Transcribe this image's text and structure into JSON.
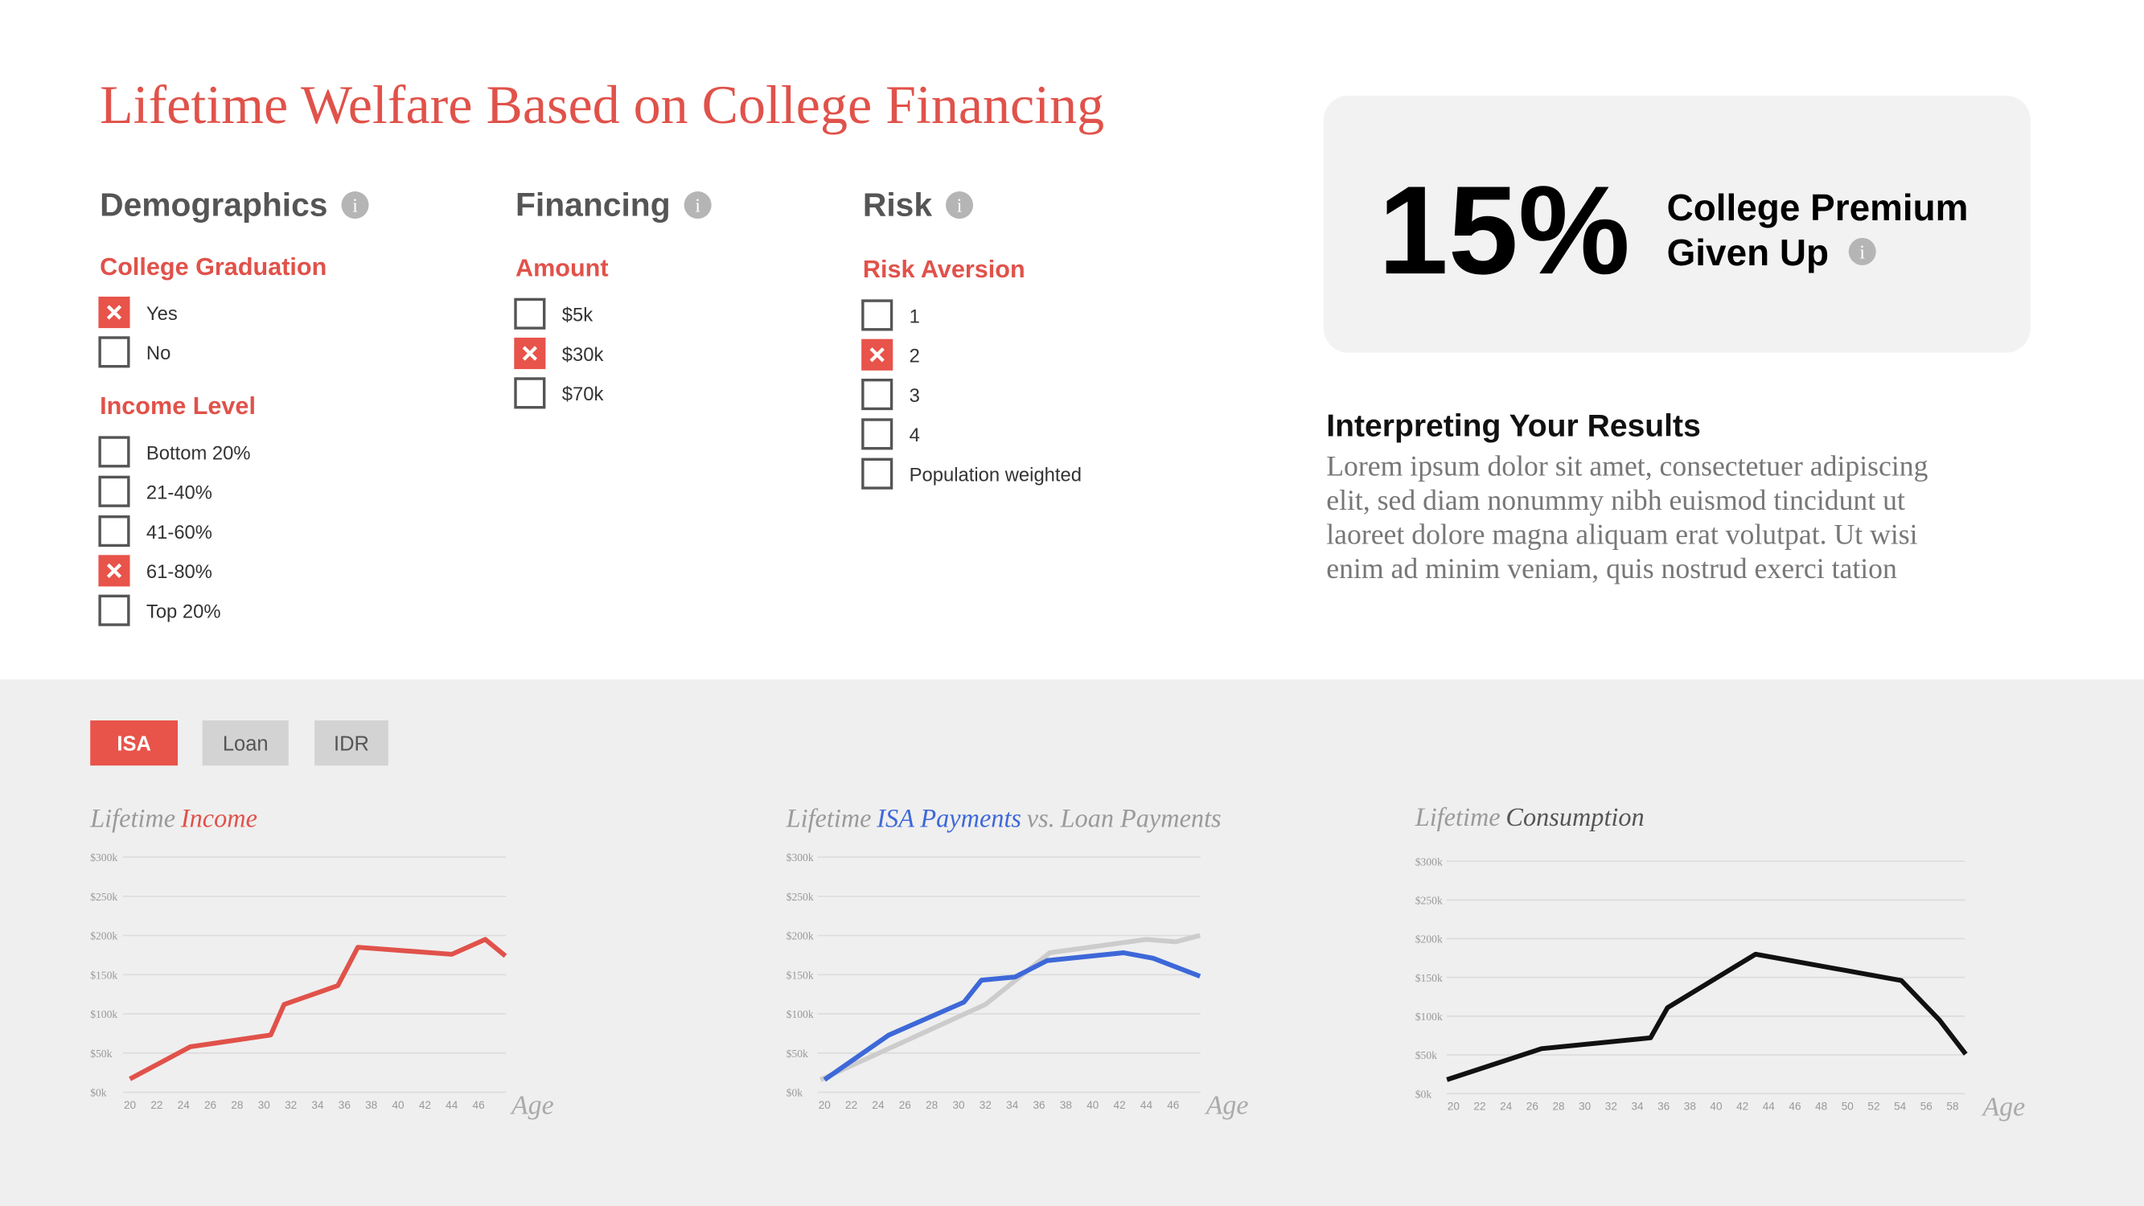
{
  "title": "Lifetime Welfare Based on College Financing",
  "sections": [
    {
      "heading": "Demographics",
      "groups": [
        {
          "label": "College Graduation",
          "options": [
            {
              "label": "Yes",
              "checked": true
            },
            {
              "label": "No",
              "checked": false
            }
          ]
        },
        {
          "label": "Income Level",
          "options": [
            {
              "label": "Bottom 20%",
              "checked": false
            },
            {
              "label": "21-40%",
              "checked": false
            },
            {
              "label": "41-60%",
              "checked": false
            },
            {
              "label": "61-80%",
              "checked": true
            },
            {
              "label": "Top 20%",
              "checked": false
            }
          ]
        }
      ]
    },
    {
      "heading": "Financing",
      "groups": [
        {
          "label": "Amount",
          "options": [
            {
              "label": "$5k",
              "checked": false
            },
            {
              "label": "$30k",
              "checked": true
            },
            {
              "label": "$70k",
              "checked": false
            }
          ]
        }
      ]
    },
    {
      "heading": "Risk",
      "groups": [
        {
          "label": "Risk Aversion",
          "options": [
            {
              "label": "1",
              "checked": false
            },
            {
              "label": "2",
              "checked": true
            },
            {
              "label": "3",
              "checked": false
            },
            {
              "label": "4",
              "checked": false
            },
            {
              "label": "Population weighted",
              "checked": false
            }
          ]
        }
      ]
    }
  ],
  "result": {
    "value": "15%",
    "label_lines": [
      "College Premium",
      "Given Up"
    ]
  },
  "interpretation": {
    "heading": "Interpreting Your Results",
    "body_lines": [
      "Lorem ipsum dolor sit amet, consectetuer adipiscing",
      "elit, sed diam nonummy nibh euismod tincidunt ut",
      "laoreet dolore magna aliquam erat volutpat. Ut wisi",
      "enim ad minim veniam, quis nostrud exerci tation"
    ]
  },
  "tabs": [
    {
      "label": "ISA",
      "active": true
    },
    {
      "label": "Loan",
      "active": false
    },
    {
      "label": "IDR",
      "active": false
    }
  ],
  "chart_data": [
    {
      "type": "line",
      "title_parts": [
        {
          "text": "Lifetime",
          "color": "#9a9a9a"
        },
        {
          "text": "Income",
          "color": "#e0524a"
        }
      ],
      "x_label": "Age",
      "xlim": [
        19.5,
        48
      ],
      "xticks": [
        20,
        22,
        24,
        26,
        28,
        30,
        32,
        34,
        36,
        38,
        40,
        42,
        44,
        46
      ],
      "ylim": [
        0,
        300
      ],
      "yticks": [
        {
          "value": 0,
          "label": "$0k"
        },
        {
          "value": 50,
          "label": "$50k"
        },
        {
          "value": 100,
          "label": "$100k"
        },
        {
          "value": 150,
          "label": "$150k"
        },
        {
          "value": 200,
          "label": "$200k"
        },
        {
          "value": 250,
          "label": "$250k"
        },
        {
          "value": 300,
          "label": "$300k"
        }
      ],
      "grid": true,
      "series": [
        {
          "color": "#e0524a",
          "x": [
            20,
            24.5,
            30.5,
            31.5,
            35.5,
            37,
            44,
            46.5,
            48
          ],
          "values": [
            17,
            58,
            73,
            112,
            136,
            185,
            176,
            195,
            174
          ]
        }
      ]
    },
    {
      "type": "line",
      "title_parts": [
        {
          "text": "Lifetime",
          "color": "#9a9a9a"
        },
        {
          "text": "ISA Payments",
          "color": "#3d68d8"
        },
        {
          "text": "vs.",
          "color": "#9a9a9a"
        },
        {
          "text": "Loan Payments",
          "color": "#9a9a9a"
        }
      ],
      "x_label": "Age",
      "xlim": [
        19.5,
        48
      ],
      "xticks": [
        20,
        22,
        24,
        26,
        28,
        30,
        32,
        34,
        36,
        38,
        40,
        42,
        44,
        46
      ],
      "ylim": [
        0,
        300
      ],
      "yticks": [
        {
          "value": 0,
          "label": "$0k"
        },
        {
          "value": 50,
          "label": "$50k"
        },
        {
          "value": 100,
          "label": "$100k"
        },
        {
          "value": 150,
          "label": "$150k"
        },
        {
          "value": 200,
          "label": "$200k"
        },
        {
          "value": 250,
          "label": "$250k"
        },
        {
          "value": 300,
          "label": "$300k"
        }
      ],
      "grid": true,
      "series": [
        {
          "color": "#cccccc",
          "x": [
            19.7,
            32,
            36.8,
            44,
            46.2,
            48
          ],
          "values": [
            16,
            112,
            178,
            195,
            192,
            200
          ]
        },
        {
          "color": "#3d68d8",
          "x": [
            20,
            24.8,
            30.4,
            31.7,
            34.2,
            36.6,
            42.3,
            44.5,
            48
          ],
          "values": [
            16,
            73,
            115,
            143,
            147,
            168,
            178,
            171,
            148
          ]
        }
      ]
    },
    {
      "type": "line",
      "title_parts": [
        {
          "text": "Lifetime",
          "color": "#9a9a9a"
        },
        {
          "text": "Consumption",
          "color": "#555555"
        }
      ],
      "x_label": "Age",
      "xlim": [
        19,
        60
      ],
      "xticks": [
        20,
        22,
        24,
        26,
        28,
        30,
        32,
        34,
        36,
        38,
        40,
        42,
        44,
        46,
        48,
        50,
        52,
        54,
        56,
        58
      ],
      "ylim": [
        0,
        300
      ],
      "yticks": [
        {
          "value": 0,
          "label": "$0k"
        },
        {
          "value": 50,
          "label": "$50k"
        },
        {
          "value": 100,
          "label": "$100k"
        },
        {
          "value": 150,
          "label": "$150k"
        },
        {
          "value": 200,
          "label": "$200k"
        },
        {
          "value": 250,
          "label": "$250k"
        },
        {
          "value": 300,
          "label": "$300k"
        }
      ],
      "grid": true,
      "series": [
        {
          "color": "#111111",
          "x": [
            19.5,
            26.7,
            35,
            36.3,
            43,
            54.1,
            57,
            59
          ],
          "values": [
            18,
            58,
            72,
            111,
            180,
            146,
            95,
            51
          ]
        }
      ]
    }
  ]
}
